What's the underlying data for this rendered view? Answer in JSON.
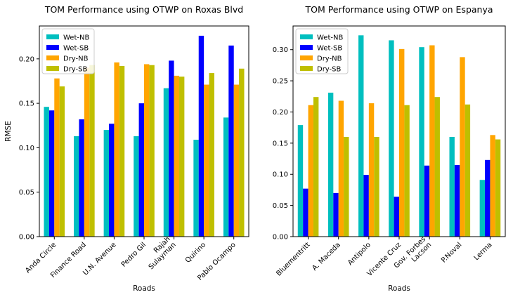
{
  "chart_data": [
    {
      "type": "bar",
      "title": "TOM Performance using OTWP on Roxas Blvd",
      "xlabel": "Roads",
      "ylabel": "RMSE",
      "ylim": [
        0,
        0.237
      ],
      "yticks": [
        "0.00",
        "0.05",
        "0.10",
        "0.15",
        "0.20"
      ],
      "yticks_values": [
        0,
        0.05,
        0.1,
        0.15,
        0.2
      ],
      "grid": false,
      "legend_position": "top-left",
      "categories": [
        "Anda Circle",
        "Finance Road",
        "U.N. Avenue",
        "Pedro Gil",
        "Rajah\nSulayman",
        "Quirino",
        "Pablo Ocampo"
      ],
      "series": [
        {
          "name": "Wet-NB",
          "color": "#00bfbf",
          "values": [
            0.146,
            0.113,
            0.12,
            0.113,
            0.167,
            0.109,
            0.134
          ]
        },
        {
          "name": "Wet-SB",
          "color": "#0000ff",
          "values": [
            0.142,
            0.132,
            0.127,
            0.15,
            0.198,
            0.226,
            0.215
          ]
        },
        {
          "name": "Dry-NB",
          "color": "#ffa500",
          "values": [
            0.178,
            0.19,
            0.196,
            0.194,
            0.181,
            0.171,
            0.171
          ]
        },
        {
          "name": "Dry-SB",
          "color": "#bfbf00",
          "values": [
            0.169,
            0.193,
            0.192,
            0.193,
            0.18,
            0.184,
            0.189
          ]
        }
      ]
    },
    {
      "type": "bar",
      "title": "TOM Performance using OTWP on Espanya",
      "xlabel": "Roads",
      "ylabel": "",
      "ylim": [
        0,
        0.338
      ],
      "yticks": [
        "0.00",
        "0.05",
        "0.10",
        "0.15",
        "0.20",
        "0.25",
        "0.30"
      ],
      "yticks_values": [
        0,
        0.05,
        0.1,
        0.15,
        0.2,
        0.25,
        0.3
      ],
      "grid": false,
      "legend_position": "top-left",
      "categories": [
        "Bluementritt",
        "A. Maceda",
        "Antipolo",
        "Vicente Cruz",
        "Gov. Forbes\nLacson",
        "P.Noval",
        "Lerma"
      ],
      "series": [
        {
          "name": "Wet-NB",
          "color": "#00bfbf",
          "values": [
            0.179,
            0.231,
            0.323,
            0.315,
            0.304,
            0.16,
            0.091
          ]
        },
        {
          "name": "Wet-SB",
          "color": "#0000ff",
          "values": [
            0.077,
            0.07,
            0.099,
            0.064,
            0.114,
            0.115,
            0.123
          ]
        },
        {
          "name": "Dry-NB",
          "color": "#ffa500",
          "values": [
            0.211,
            0.218,
            0.214,
            0.301,
            0.307,
            0.288,
            0.163
          ]
        },
        {
          "name": "Dry-SB",
          "color": "#bfbf00",
          "values": [
            0.224,
            0.16,
            0.16,
            0.211,
            0.224,
            0.212,
            0.156
          ]
        }
      ]
    }
  ]
}
